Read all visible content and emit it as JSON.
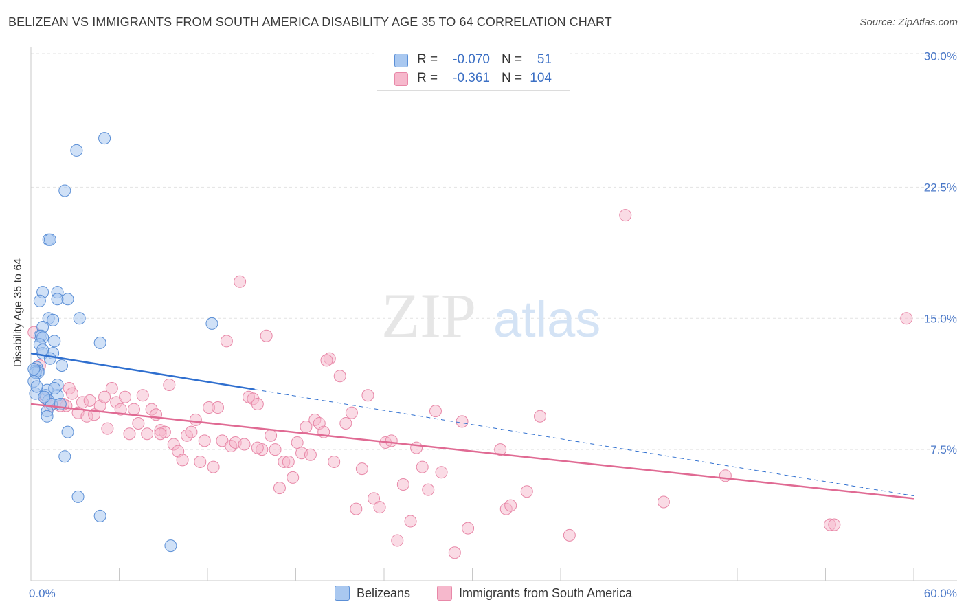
{
  "title": "BELIZEAN VS IMMIGRANTS FROM SOUTH AMERICA DISABILITY AGE 35 TO 64 CORRELATION CHART",
  "source": "Source: ZipAtlas.com",
  "watermark": {
    "zip": "ZIP",
    "atlas": "atlas"
  },
  "stats_legend": [
    {
      "series": "Belizeans",
      "r_label": "R =",
      "r_value": "-0.070",
      "n_label": "N =",
      "n_value": "51"
    },
    {
      "series": "Immigrants from South America",
      "r_label": "R =",
      "r_value": "-0.361",
      "n_label": "N =",
      "n_value": "104"
    }
  ],
  "colors": {
    "belizean_fill": "#a9c8f0",
    "belizean_stroke": "#5b8fd6",
    "belizean_line": "#2f6fcf",
    "sa_fill": "#f6b8cc",
    "sa_stroke": "#e888a8",
    "sa_line": "#e06a93",
    "tick_text": "#4a78c8",
    "grid": "#e2e2e2"
  },
  "chart_data": {
    "type": "scatter",
    "title": "BELIZEAN VS IMMIGRANTS FROM SOUTH AMERICA DISABILITY AGE 35 TO 64 CORRELATION CHART",
    "xlabel": "",
    "ylabel": "Disability Age 35 to 64",
    "xlim": [
      0,
      60
    ],
    "ylim": [
      0,
      31
    ],
    "x_tick_labels": [
      {
        "value": 0,
        "label": "0.0%"
      },
      {
        "value": 60,
        "label": "60.0%"
      }
    ],
    "x_minor_ticks": [
      0,
      6,
      12,
      18,
      24,
      30,
      36,
      42,
      48,
      54,
      60
    ],
    "y_ticks": [
      {
        "value": 7.5,
        "label": "7.5%"
      },
      {
        "value": 15,
        "label": "15.0%"
      },
      {
        "value": 22.5,
        "label": "22.5%"
      },
      {
        "value": 30,
        "label": "30.0%"
      }
    ],
    "legend_position": "bottom",
    "series": [
      {
        "name": "Belizeans",
        "trend": {
          "x0": 0,
          "y0": 13.0,
          "x1": 60,
          "y1": 4.85,
          "solid_until_x": 15.2
        },
        "points": [
          [
            3.1,
            24.6
          ],
          [
            5.0,
            25.3
          ],
          [
            2.3,
            22.3
          ],
          [
            1.2,
            19.5
          ],
          [
            1.3,
            19.5
          ],
          [
            0.8,
            16.5
          ],
          [
            1.8,
            16.5
          ],
          [
            0.6,
            16.0
          ],
          [
            1.8,
            16.1
          ],
          [
            2.5,
            16.1
          ],
          [
            1.2,
            15.0
          ],
          [
            1.5,
            14.9
          ],
          [
            3.3,
            15.0
          ],
          [
            0.8,
            14.5
          ],
          [
            0.6,
            14.0
          ],
          [
            0.7,
            14.0
          ],
          [
            0.8,
            13.9
          ],
          [
            1.6,
            13.7
          ],
          [
            4.7,
            13.6
          ],
          [
            0.6,
            13.5
          ],
          [
            0.8,
            13.0
          ],
          [
            1.5,
            13.0
          ],
          [
            1.3,
            12.7
          ],
          [
            2.1,
            12.3
          ],
          [
            0.4,
            12.2
          ],
          [
            0.5,
            12.0
          ],
          [
            0.3,
            12.0
          ],
          [
            0.5,
            11.9
          ],
          [
            0.3,
            11.9
          ],
          [
            0.2,
            11.4
          ],
          [
            1.8,
            11.2
          ],
          [
            1.1,
            10.9
          ],
          [
            0.3,
            10.7
          ],
          [
            1.0,
            10.6
          ],
          [
            1.8,
            10.6
          ],
          [
            1.2,
            10.3
          ],
          [
            1.4,
            10.1
          ],
          [
            1.1,
            9.7
          ],
          [
            1.1,
            9.4
          ],
          [
            2.5,
            8.5
          ],
          [
            2.3,
            7.1
          ],
          [
            3.2,
            4.8
          ],
          [
            4.7,
            3.7
          ],
          [
            9.5,
            2.0
          ],
          [
            12.3,
            14.7
          ],
          [
            0.8,
            13.2
          ],
          [
            0.9,
            10.5
          ],
          [
            0.2,
            12.1
          ],
          [
            1.6,
            11.0
          ],
          [
            2.0,
            10.1
          ],
          [
            0.4,
            11.1
          ]
        ]
      },
      {
        "name": "Immigrants from South America",
        "trend": {
          "x0": 0,
          "y0": 10.1,
          "x1": 60,
          "y1": 4.7
        },
        "points": [
          [
            0.2,
            14.2
          ],
          [
            0.6,
            12.3
          ],
          [
            1.0,
            10.4
          ],
          [
            1.3,
            10.0
          ],
          [
            2.0,
            10.0
          ],
          [
            2.4,
            10.0
          ],
          [
            2.6,
            11.0
          ],
          [
            2.8,
            10.7
          ],
          [
            3.2,
            9.6
          ],
          [
            3.5,
            10.2
          ],
          [
            3.8,
            9.4
          ],
          [
            4.0,
            10.3
          ],
          [
            4.3,
            9.5
          ],
          [
            4.7,
            10.0
          ],
          [
            5.0,
            10.5
          ],
          [
            5.2,
            8.7
          ],
          [
            5.5,
            11.0
          ],
          [
            5.8,
            10.2
          ],
          [
            6.1,
            9.8
          ],
          [
            6.4,
            10.5
          ],
          [
            6.7,
            8.4
          ],
          [
            7.0,
            9.8
          ],
          [
            7.3,
            9.0
          ],
          [
            7.6,
            10.6
          ],
          [
            7.9,
            8.4
          ],
          [
            8.2,
            9.8
          ],
          [
            8.5,
            9.5
          ],
          [
            8.8,
            8.6
          ],
          [
            9.1,
            8.5
          ],
          [
            9.4,
            11.2
          ],
          [
            9.7,
            7.8
          ],
          [
            10.0,
            7.4
          ],
          [
            10.3,
            6.9
          ],
          [
            10.6,
            8.3
          ],
          [
            10.9,
            8.5
          ],
          [
            11.2,
            9.2
          ],
          [
            11.5,
            6.8
          ],
          [
            11.8,
            8.0
          ],
          [
            12.1,
            9.9
          ],
          [
            12.4,
            6.5
          ],
          [
            12.7,
            9.9
          ],
          [
            13.0,
            8.0
          ],
          [
            13.3,
            13.7
          ],
          [
            13.6,
            7.7
          ],
          [
            13.9,
            7.9
          ],
          [
            14.2,
            17.1
          ],
          [
            14.5,
            7.8
          ],
          [
            14.8,
            10.5
          ],
          [
            15.1,
            10.4
          ],
          [
            15.4,
            10.1
          ],
          [
            15.7,
            7.5
          ],
          [
            16.0,
            14.0
          ],
          [
            16.3,
            8.3
          ],
          [
            16.6,
            7.5
          ],
          [
            16.9,
            5.3
          ],
          [
            17.2,
            6.8
          ],
          [
            17.5,
            6.8
          ],
          [
            17.8,
            5.9
          ],
          [
            18.1,
            7.9
          ],
          [
            18.4,
            7.3
          ],
          [
            18.7,
            8.8
          ],
          [
            19.0,
            7.2
          ],
          [
            19.3,
            9.2
          ],
          [
            19.6,
            9.0
          ],
          [
            19.9,
            8.5
          ],
          [
            20.3,
            12.7
          ],
          [
            20.6,
            6.8
          ],
          [
            21.0,
            11.7
          ],
          [
            21.4,
            9.0
          ],
          [
            21.8,
            9.6
          ],
          [
            22.1,
            4.1
          ],
          [
            22.5,
            6.4
          ],
          [
            22.9,
            10.6
          ],
          [
            23.3,
            4.7
          ],
          [
            23.7,
            4.2
          ],
          [
            24.1,
            7.9
          ],
          [
            24.5,
            8.0
          ],
          [
            24.9,
            2.3
          ],
          [
            25.3,
            5.5
          ],
          [
            25.8,
            3.4
          ],
          [
            26.2,
            7.6
          ],
          [
            26.6,
            6.5
          ],
          [
            27.0,
            5.2
          ],
          [
            27.5,
            9.7
          ],
          [
            27.9,
            6.2
          ],
          [
            28.8,
            1.6
          ],
          [
            29.3,
            9.1
          ],
          [
            29.7,
            3.0
          ],
          [
            31.9,
            7.5
          ],
          [
            32.3,
            4.1
          ],
          [
            32.6,
            4.3
          ],
          [
            33.7,
            5.1
          ],
          [
            34.6,
            9.4
          ],
          [
            36.6,
            2.6
          ],
          [
            40.4,
            20.9
          ],
          [
            43.0,
            4.5
          ],
          [
            47.2,
            6.0
          ],
          [
            54.3,
            3.2
          ],
          [
            54.6,
            3.2
          ],
          [
            59.5,
            15.0
          ],
          [
            20.1,
            12.6
          ],
          [
            8.8,
            8.4
          ],
          [
            2.2,
            10.1
          ],
          [
            15.4,
            7.6
          ]
        ]
      }
    ]
  }
}
